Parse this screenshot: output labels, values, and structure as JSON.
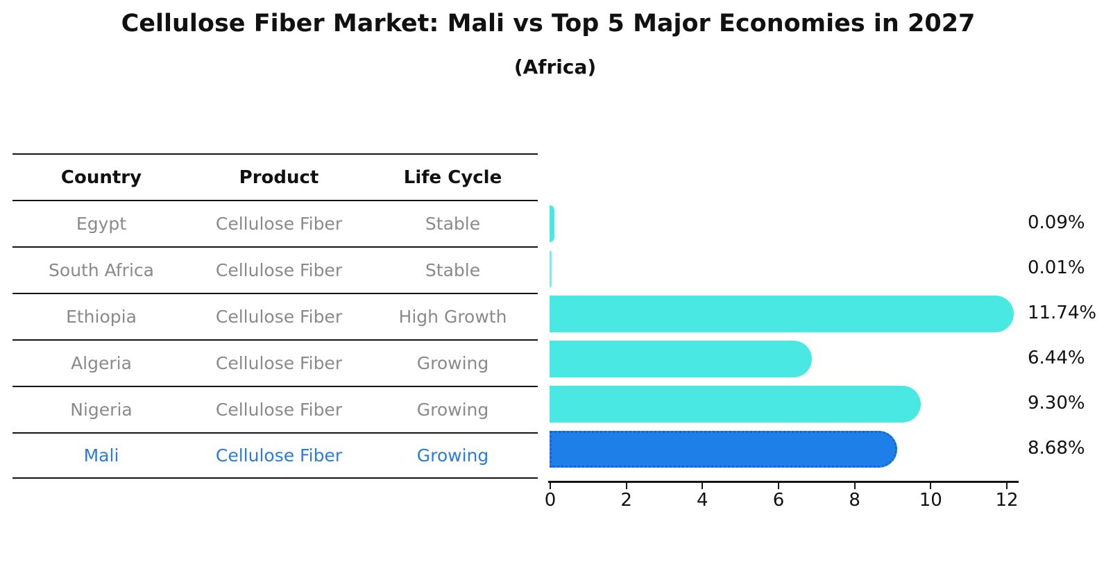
{
  "title": "Cellulose Fiber Market: Mali vs Top 5 Major Economies in 2027",
  "subtitle": "(Africa)",
  "table": {
    "headers": [
      "Country",
      "Product",
      "Life Cycle"
    ],
    "rows": [
      {
        "country": "Egypt",
        "product": "Cellulose Fiber",
        "life_cycle": "Stable"
      },
      {
        "country": "South Africa",
        "product": "Cellulose Fiber",
        "life_cycle": "Stable"
      },
      {
        "country": "Ethiopia",
        "product": "Cellulose Fiber",
        "life_cycle": "High Growth"
      },
      {
        "country": "Algeria",
        "product": "Cellulose Fiber",
        "life_cycle": "Growing"
      },
      {
        "country": "Nigeria",
        "product": "Cellulose Fiber",
        "life_cycle": "Growing"
      },
      {
        "country": "Mali",
        "product": "Cellulose Fiber",
        "life_cycle": "Growing"
      }
    ]
  },
  "chart_data": {
    "type": "bar",
    "orientation": "horizontal",
    "title": "Cellulose Fiber Market: Mali vs Top 5 Major Economies in 2027",
    "subtitle": "(Africa)",
    "categories": [
      "Egypt",
      "South Africa",
      "Ethiopia",
      "Algeria",
      "Nigeria",
      "Mali"
    ],
    "values": [
      0.09,
      0.01,
      11.74,
      6.44,
      9.3,
      8.68
    ],
    "value_labels": [
      "0.09%",
      "0.01%",
      "11.74%",
      "6.44%",
      "9.30%",
      "8.68%"
    ],
    "xlim": [
      0,
      12
    ],
    "x_ticks": [
      "0",
      "2",
      "4",
      "6",
      "8",
      "10",
      "12"
    ],
    "grid": false,
    "legend": false,
    "bar_color": "#49E8E2",
    "highlight_bar_color": "#1E7FE8",
    "highlight_index": 5,
    "highlight_category": "Mali"
  },
  "colors": {
    "row_text": "#8a8a8a",
    "highlight_text": "#2A7CD8",
    "axis": "#141414",
    "label_text": "#111111"
  }
}
